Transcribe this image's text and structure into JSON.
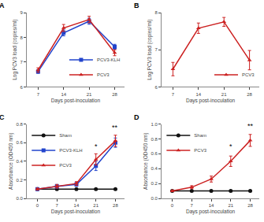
{
  "chart_data": [
    {
      "type": "line",
      "title": "A",
      "x": [
        7,
        14,
        21,
        28
      ],
      "series": [
        {
          "name": "PCV3-KLH",
          "color": "#2244cc",
          "marker": "square",
          "values": [
            6.62,
            8.18,
            8.65,
            7.62
          ],
          "yerr": [
            0.07,
            0.12,
            0.12,
            0.1
          ]
        },
        {
          "name": "PCV3",
          "color": "#cc2222",
          "marker": "triangle-up",
          "values": [
            6.68,
            8.38,
            8.72,
            7.38
          ],
          "yerr": [
            0.09,
            0.14,
            0.13,
            0.12
          ]
        }
      ],
      "xlabel": "Days post-inoculation",
      "ylabel": "Log PCV3 load (copies/ml)",
      "xlim": [
        3.9,
        30.68
      ],
      "xticks": [
        7,
        14,
        21,
        28
      ],
      "ylim": [
        6,
        9
      ],
      "yticks": [
        6,
        7,
        8,
        9
      ],
      "grid": false,
      "legend": "lower right"
    },
    {
      "type": "line",
      "title": "B",
      "x": [
        7,
        14,
        21,
        28
      ],
      "series": [
        {
          "name": "PCV3",
          "color": "#cc2222",
          "marker": "triangle-up",
          "values": [
            6.48,
            7.58,
            7.75,
            6.72
          ],
          "yerr": [
            0.18,
            0.14,
            0.12,
            0.26
          ]
        }
      ],
      "xlabel": "Days post-inoculation",
      "ylabel": "Log PCV3 load (copies/ml)",
      "xlim": [
        3.9,
        30.68
      ],
      "xticks": [
        7,
        14,
        21,
        28
      ],
      "ylim": [
        6,
        8
      ],
      "yticks": [
        6,
        7,
        8
      ],
      "grid": false,
      "legend": "lower right"
    },
    {
      "type": "line",
      "title": "C",
      "x": [
        0,
        7,
        14,
        21,
        28
      ],
      "series": [
        {
          "name": "Sham",
          "color": "#111111",
          "marker": "circle",
          "values": [
            0.1,
            0.1,
            0.1,
            0.1,
            0.1
          ],
          "yerr": [
            0.005,
            0.005,
            0.005,
            0.005,
            0.005
          ]
        },
        {
          "name": "PCV3-KLH",
          "color": "#2244cc",
          "marker": "square",
          "values": [
            0.1,
            0.13,
            0.15,
            0.35,
            0.6
          ],
          "yerr": [
            0.01,
            0.02,
            0.02,
            0.05,
            0.05
          ]
        },
        {
          "name": "PCV3",
          "color": "#cc2222",
          "marker": "triangle-up",
          "values": [
            0.1,
            0.13,
            0.16,
            0.42,
            0.62
          ],
          "yerr": [
            0.01,
            0.02,
            0.02,
            0.06,
            0.06
          ]
        }
      ],
      "xlabel": "Days post-inoculation",
      "ylabel": "Absorbance (OD450 nm)",
      "xlim": [
        -3.8,
        31.24
      ],
      "xticks": [
        0,
        7,
        14,
        21,
        28
      ],
      "ylim": [
        0,
        0.8
      ],
      "yticks": [
        {
          "value": 0,
          "label": "0.0"
        },
        0.2,
        0.4,
        0.6,
        0.8
      ],
      "grid": false,
      "legend": "upper left",
      "annotations": [
        {
          "x": 21,
          "y": 0.5,
          "text": "*"
        },
        {
          "x": 28,
          "y": 0.7,
          "text": "**"
        }
      ]
    },
    {
      "type": "line",
      "title": "D",
      "x": [
        0,
        7,
        14,
        21,
        28
      ],
      "series": [
        {
          "name": "Sham",
          "color": "#111111",
          "marker": "circle",
          "values": [
            0.1,
            0.1,
            0.1,
            0.1,
            0.1
          ],
          "yerr": [
            0.005,
            0.005,
            0.005,
            0.005,
            0.005
          ]
        },
        {
          "name": "PCV3",
          "color": "#cc2222",
          "marker": "triangle-up",
          "values": [
            0.1,
            0.15,
            0.26,
            0.5,
            0.78
          ],
          "yerr": [
            0.01,
            0.02,
            0.04,
            0.07,
            0.08
          ]
        }
      ],
      "xlabel": "Days post-inoculation",
      "ylabel": "Absorbance (OD450 nm)",
      "xlim": [
        -3.8,
        31.24
      ],
      "xticks": [
        0,
        7,
        14,
        21,
        28
      ],
      "ylim": [
        0,
        1.0
      ],
      "yticks": [
        {
          "value": 0,
          "label": "0.0"
        },
        0.2,
        0.4,
        0.6,
        0.8,
        {
          "value": 1,
          "label": "1.0"
        }
      ],
      "grid": false,
      "legend": "upper left",
      "annotations": [
        {
          "x": 21,
          "y": 0.62,
          "text": "*"
        },
        {
          "x": 28,
          "y": 0.9,
          "text": "**"
        }
      ]
    }
  ]
}
